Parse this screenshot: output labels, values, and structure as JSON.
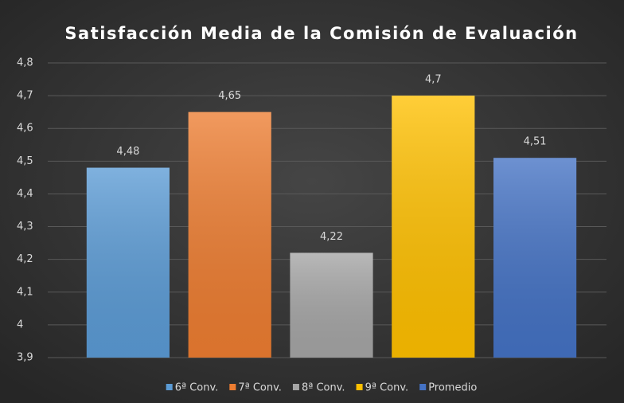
{
  "chart_data": {
    "type": "bar",
    "title": "Satisfacción Media de la Comisión de Evaluación",
    "categories": [
      null
    ],
    "series": [
      {
        "name": "6ª Conv.",
        "color": "#5b9bd5",
        "values": [
          4.48
        ],
        "value_labels": [
          "4,48"
        ]
      },
      {
        "name": "7ª Conv.",
        "color": "#ed7d31",
        "values": [
          4.65
        ],
        "value_labels": [
          "4,65"
        ]
      },
      {
        "name": "8ª Conv.",
        "color": "#a5a5a5",
        "values": [
          4.22
        ],
        "value_labels": [
          "4,22"
        ]
      },
      {
        "name": "9ª Conv.",
        "color": "#ffc000",
        "values": [
          4.7
        ],
        "value_labels": [
          "4,7"
        ]
      },
      {
        "name": "Promedio",
        "color": "#4472c4",
        "values": [
          4.51
        ],
        "value_labels": [
          "4,51"
        ]
      }
    ],
    "ylim": [
      3.9,
      4.8
    ],
    "yticks": [
      {
        "value": 3.9,
        "label": "3,9"
      },
      4,
      {
        "value": 4.1,
        "label": "4,1"
      },
      {
        "value": 4.2,
        "label": "4,2"
      },
      {
        "value": 4.3,
        "label": "4,3"
      },
      {
        "value": 4.4,
        "label": "4,4"
      },
      {
        "value": 4.5,
        "label": "4,5"
      },
      {
        "value": 4.6,
        "label": "4,6"
      },
      {
        "value": 4.7,
        "label": "4,7"
      },
      {
        "value": 4.8,
        "label": "4,8"
      }
    ],
    "grid": true,
    "legend": "bottom"
  }
}
